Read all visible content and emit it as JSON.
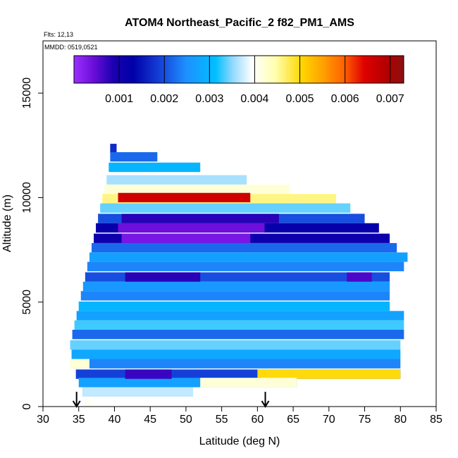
{
  "chart_data": {
    "type": "heatmap",
    "title": "ATOM4 Northeast_Pacific_2 f82_PM1_AMS",
    "subtitle_lines": [
      "Flts: 12,13",
      "MMDD: 0519,0521"
    ],
    "xlabel": "Latitude (deg N)",
    "ylabel": "Altitude (m)",
    "xlim": [
      30,
      85
    ],
    "ylim": [
      0,
      17500
    ],
    "x_ticks": [
      "30",
      "35",
      "40",
      "45",
      "50",
      "55",
      "60",
      "65",
      "70",
      "75",
      "80",
      "85"
    ],
    "y_ticks": [
      "0",
      "5000",
      "10000",
      "15000"
    ],
    "colorbar": {
      "range": [
        0.0,
        0.0073
      ],
      "ticks": [
        "0.001",
        "0.002",
        "0.003",
        "0.004",
        "0.005",
        "0.006",
        "0.007"
      ],
      "placement": "top inside plot"
    },
    "arrows_lat": [
      34.7,
      61.1
    ],
    "bands": [
      {
        "alt": 12350,
        "lat_start": 39.4,
        "lat_end": 40.3,
        "value": 0.0017
      },
      {
        "alt": 11950,
        "lat_start": 39.4,
        "lat_end": 46.0,
        "value": 0.0022
      },
      {
        "alt": 11450,
        "lat_start": 39.2,
        "lat_end": 52.0,
        "value": 0.003
      },
      {
        "alt": 10850,
        "lat_start": 38.9,
        "lat_end": 58.5,
        "value": 0.0036
      },
      {
        "alt": 10400,
        "lat_start": 38.6,
        "lat_end": 64.5,
        "value": 0.0042
      },
      {
        "alt": 9950,
        "lat_start": 38.3,
        "lat_end": 71.0,
        "value": 0.0046
      },
      {
        "alt": 9500,
        "lat_start": 38.0,
        "lat_end": 73.0,
        "value": 0.0034
      },
      {
        "alt": 9000,
        "lat_start": 37.7,
        "lat_end": 75.0,
        "value": 0.002
      },
      {
        "alt": 8550,
        "lat_start": 37.4,
        "lat_end": 77.0,
        "value": 0.0012
      },
      {
        "alt": 8050,
        "lat_start": 37.1,
        "lat_end": 78.5,
        "value": 0.0011
      },
      {
        "alt": 7600,
        "lat_start": 36.8,
        "lat_end": 79.5,
        "value": 0.0022
      },
      {
        "alt": 7150,
        "lat_start": 36.5,
        "lat_end": 81.0,
        "value": 0.0027
      },
      {
        "alt": 6700,
        "lat_start": 36.2,
        "lat_end": 80.5,
        "value": 0.0024
      },
      {
        "alt": 6200,
        "lat_start": 35.9,
        "lat_end": 78.5,
        "value": 0.002
      },
      {
        "alt": 5750,
        "lat_start": 35.6,
        "lat_end": 78.5,
        "value": 0.0026
      },
      {
        "alt": 5300,
        "lat_start": 35.3,
        "lat_end": 78.5,
        "value": 0.0024
      },
      {
        "alt": 4800,
        "lat_start": 35.0,
        "lat_end": 78.5,
        "value": 0.003
      },
      {
        "alt": 4350,
        "lat_start": 34.7,
        "lat_end": 80.5,
        "value": 0.0027
      },
      {
        "alt": 3900,
        "lat_start": 34.4,
        "lat_end": 80.5,
        "value": 0.0033
      },
      {
        "alt": 3450,
        "lat_start": 34.1,
        "lat_end": 80.5,
        "value": 0.0022
      },
      {
        "alt": 2950,
        "lat_start": 33.8,
        "lat_end": 80.0,
        "value": 0.0034
      },
      {
        "alt": 2500,
        "lat_start": 34.0,
        "lat_end": 80.0,
        "value": 0.0028
      },
      {
        "alt": 2050,
        "lat_start": 34.3,
        "lat_end": 80.0,
        "value": 0.0024
      },
      {
        "alt": 1550,
        "lat_start": 34.6,
        "lat_end": 80.0,
        "value": 0.0019
      },
      {
        "alt": 1150,
        "lat_start": 35.0,
        "lat_end": 65.5,
        "value": 0.0027
      },
      {
        "alt": 700,
        "lat_start": 35.5,
        "lat_end": 51.0,
        "value": 0.0037
      },
      {
        "alt": 250,
        "lat_start": 35.9,
        "lat_end": 37.0,
        "value": 0.004
      }
    ],
    "features": [
      {
        "alt": 10000,
        "lat_start": 40.5,
        "lat_end": 59.0,
        "value": 0.0066
      },
      {
        "alt": 9000,
        "lat_start": 41.0,
        "lat_end": 63.0,
        "value": 0.0008
      },
      {
        "alt": 8550,
        "lat_start": 40.5,
        "lat_end": 61.0,
        "value": 0.0004
      },
      {
        "alt": 8050,
        "lat_start": 41.0,
        "lat_end": 59.0,
        "value": 0.0003
      },
      {
        "alt": 6200,
        "lat_start": 41.5,
        "lat_end": 52.0,
        "value": 0.0008
      },
      {
        "alt": 6200,
        "lat_start": 72.5,
        "lat_end": 76.0,
        "value": 0.0006
      },
      {
        "alt": 1550,
        "lat_start": 41.5,
        "lat_end": 48.0,
        "value": 0.0007
      },
      {
        "alt": 1550,
        "lat_start": 60.0,
        "lat_end": 80.0,
        "value": 0.005
      },
      {
        "alt": 1150,
        "lat_start": 52.0,
        "lat_end": 65.5,
        "value": 0.0042
      },
      {
        "alt": 2050,
        "lat_start": 33.8,
        "lat_end": 36.5,
        "value": 0.0042
      }
    ],
    "grid": false,
    "legend": "none"
  }
}
